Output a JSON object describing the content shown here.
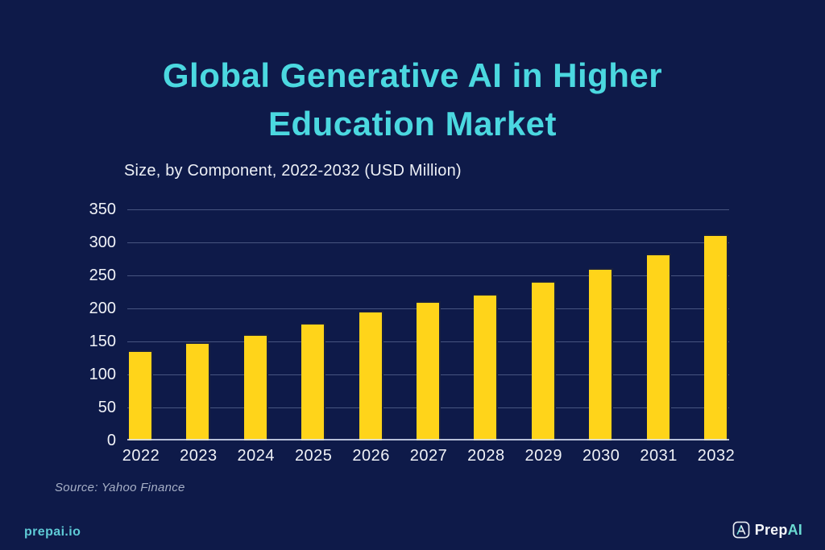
{
  "page": {
    "background_color": "#0E1A49",
    "accent_color": "#4BD8E0",
    "bar_color": "#FFD41A"
  },
  "header": {
    "title_line1": "Global Generative AI in Higher",
    "title_line2": "Education Market",
    "subtitle": "Size, by Component, 2022-2032 (USD Million)"
  },
  "chart_data": {
    "type": "bar",
    "title": "Global Generative AI in Higher Education Market",
    "subtitle": "Size, by Component, 2022-2032 (USD Million)",
    "categories": [
      "2022",
      "2023",
      "2024",
      "2025",
      "2026",
      "2027",
      "2028",
      "2029",
      "2030",
      "2031",
      "2032"
    ],
    "values": [
      137,
      149,
      161,
      178,
      196,
      211,
      222,
      242,
      261,
      283,
      312
    ],
    "xlabel": "",
    "ylabel": "",
    "ylim": [
      0,
      350
    ],
    "yticks": [
      0,
      50,
      100,
      150,
      200,
      250,
      300,
      350
    ],
    "grid": true,
    "legend": false,
    "bar_color": "#FFD41A"
  },
  "footer": {
    "source": "Source: Yahoo Finance",
    "site": "prepai.io",
    "brand": {
      "icon": "prepai-logo-icon",
      "prefix": "Prep",
      "suffix": "AI"
    }
  }
}
